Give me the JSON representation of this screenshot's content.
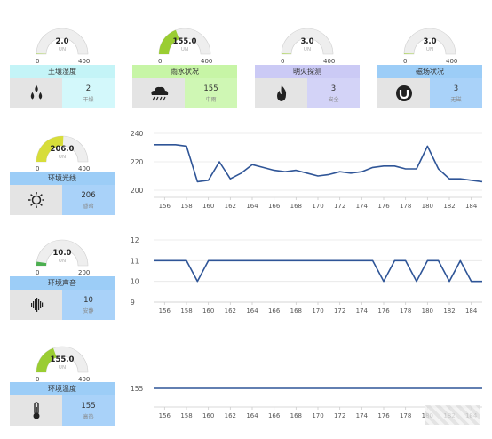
{
  "colors": {
    "line": "#2f5597",
    "gauge_track": "#eeeeee",
    "gauge_lime": "#9acd32",
    "gauge_yellow": "#d7dd3a",
    "gauge_green": "#4caf50",
    "title_cyan": "#c4f4f7",
    "title_green": "#c7f5a6",
    "title_purple": "#cbcaf5",
    "title_blue": "#9ccdf7",
    "box_cyan": "#d3f8fb",
    "box_green": "#cff7b4",
    "box_purple": "#d3d3f7",
    "box_blue": "#a9d2f9",
    "grid": "#e6e6e6"
  },
  "gauges": [
    {
      "value": "2.0",
      "unit": "UN",
      "min": "0",
      "max": "400",
      "fraction": 0.005,
      "color": "#9acd32"
    },
    {
      "value": "155.0",
      "unit": "UN",
      "min": "0",
      "max": "400",
      "fraction": 0.3875,
      "color": "#9acd32"
    },
    {
      "value": "3.0",
      "unit": "UN",
      "min": "0",
      "max": "400",
      "fraction": 0.0075,
      "color": "#9acd32"
    },
    {
      "value": "3.0",
      "unit": "UN",
      "min": "0",
      "max": "400",
      "fraction": 0.0075,
      "color": "#9acd32"
    },
    {
      "value": "206.0",
      "unit": "UN",
      "min": "0",
      "max": "400",
      "fraction": 0.515,
      "color": "#d7dd3a"
    },
    {
      "value": "10.0",
      "unit": "UN",
      "min": "0",
      "max": "200",
      "fraction": 0.05,
      "color": "#4caf50"
    },
    {
      "value": "155.0",
      "unit": "UN",
      "min": "0",
      "max": "400",
      "fraction": 0.3875,
      "color": "#9acd32"
    }
  ],
  "cards": [
    {
      "title": "土壤湿度",
      "value": "2",
      "status": "干燥",
      "icon": "water-drops-icon",
      "title_color": "#c4f4f7",
      "box_color": "#d3f8fb"
    },
    {
      "title": "雨水状况",
      "value": "155",
      "status": "中雨",
      "icon": "rain-cloud-icon",
      "title_color": "#c7f5a6",
      "box_color": "#cff7b4"
    },
    {
      "title": "明火探测",
      "value": "3",
      "status": "安全",
      "icon": "flame-icon",
      "title_color": "#cbcaf5",
      "box_color": "#d3d3f7"
    },
    {
      "title": "磁场状况",
      "value": "3",
      "status": "无磁",
      "icon": "magnet-icon",
      "title_color": "#9ccdf7",
      "box_color": "#a9d2f9"
    },
    {
      "title": "环境光线",
      "value": "206",
      "status": "昏暗",
      "icon": "sun-icon",
      "title_color": "#9ccdf7",
      "box_color": "#a9d2f9"
    },
    {
      "title": "环境声音",
      "value": "10",
      "status": "安静",
      "icon": "sound-wave-icon",
      "title_color": "#9ccdf7",
      "box_color": "#a9d2f9"
    },
    {
      "title": "环境温度",
      "value": "155",
      "status": "高热",
      "icon": "thermometer-icon",
      "title_color": "#9ccdf7",
      "box_color": "#a9d2f9"
    }
  ],
  "chart_data": [
    {
      "type": "line",
      "x": [
        155,
        156,
        157,
        158,
        159,
        160,
        161,
        162,
        163,
        164,
        165,
        166,
        167,
        168,
        169,
        170,
        171,
        172,
        173,
        174,
        175,
        176,
        177,
        178,
        179,
        180,
        181,
        182,
        183,
        184,
        185
      ],
      "series": [
        {
          "values": [
            232,
            232,
            232,
            231,
            206,
            207,
            220,
            208,
            212,
            218,
            216,
            214,
            213,
            214,
            212,
            210,
            211,
            213,
            212,
            213,
            216,
            217,
            217,
            215,
            215,
            231,
            215,
            208,
            208,
            207,
            206
          ]
        }
      ],
      "ylim": [
        195,
        240
      ],
      "yticks": [
        "200",
        "220",
        "240"
      ],
      "xticks": [
        "156",
        "158",
        "160",
        "162",
        "164",
        "166",
        "168",
        "170",
        "172",
        "174",
        "176",
        "178",
        "180",
        "182",
        "184"
      ],
      "grid": true
    },
    {
      "type": "line",
      "x": [
        155,
        156,
        157,
        158,
        159,
        160,
        161,
        162,
        163,
        164,
        165,
        166,
        167,
        168,
        169,
        170,
        171,
        172,
        173,
        174,
        175,
        176,
        177,
        178,
        179,
        180,
        181,
        182,
        183,
        184,
        185
      ],
      "series": [
        {
          "values": [
            11,
            11,
            11,
            11,
            10,
            11,
            11,
            11,
            11,
            11,
            11,
            11,
            11,
            11,
            11,
            11,
            11,
            11,
            11,
            11,
            11,
            10,
            11,
            11,
            10,
            11,
            11,
            10,
            11,
            10,
            10
          ]
        }
      ],
      "ylim": [
        9,
        12
      ],
      "yticks": [
        "9",
        "10",
        "11",
        "12"
      ],
      "xticks": [
        "156",
        "158",
        "160",
        "162",
        "164",
        "166",
        "168",
        "170",
        "172",
        "174",
        "176",
        "178",
        "180",
        "182",
        "184"
      ],
      "grid": true
    },
    {
      "type": "line",
      "x": [
        155,
        156,
        157,
        158,
        159,
        160,
        161,
        162,
        163,
        164,
        165,
        166,
        167,
        168,
        169,
        170,
        171,
        172,
        173,
        174,
        175,
        176,
        177,
        178,
        179,
        180,
        181,
        182,
        183,
        184,
        185
      ],
      "series": [
        {
          "values": [
            155,
            155,
            155,
            155,
            155,
            155,
            155,
            155,
            155,
            155,
            155,
            155,
            155,
            155,
            155,
            155,
            155,
            155,
            155,
            155,
            155,
            155,
            155,
            155,
            155,
            155,
            155,
            155,
            155,
            155,
            155
          ]
        }
      ],
      "ylim": [
        152,
        158
      ],
      "yticks": [
        "155"
      ],
      "xticks": [
        "156",
        "158",
        "160",
        "162",
        "164",
        "166",
        "168",
        "170",
        "172",
        "174",
        "176",
        "178",
        "180",
        "182",
        "184"
      ],
      "grid": true
    }
  ]
}
